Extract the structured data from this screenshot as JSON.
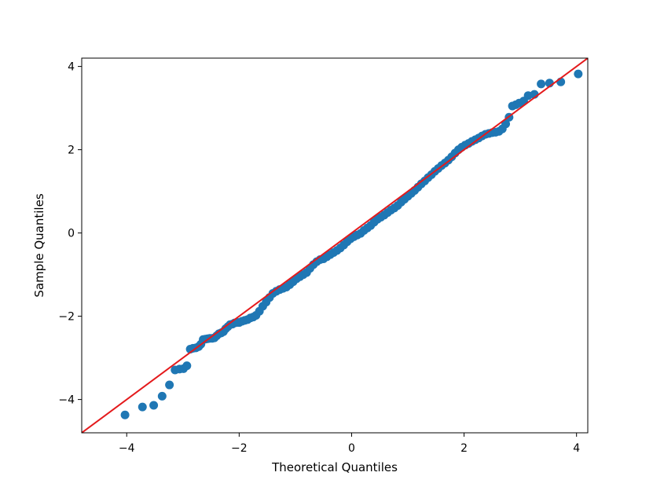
{
  "chart_data": {
    "type": "scatter",
    "title": "",
    "xlabel": "Theoretical Quantiles",
    "ylabel": "Sample Quantiles",
    "xlim": [
      -4.8,
      4.2
    ],
    "ylim": [
      -4.8,
      4.2
    ],
    "xticks": [
      -4,
      -2,
      0,
      2,
      4
    ],
    "yticks": [
      -4,
      -2,
      0,
      2,
      4
    ],
    "xtick_labels": [
      "−4",
      "−2",
      "0",
      "2",
      "4"
    ],
    "ytick_labels": [
      "−4",
      "−2",
      "0",
      "2",
      "4"
    ],
    "grid": false,
    "legend": "none",
    "reference_line": {
      "slope": 1,
      "intercept": 0,
      "color": "#e41a1c"
    },
    "marker_color": "#1f77b4",
    "series": [
      {
        "points": [
          [
            -4.03,
            -4.37
          ],
          [
            -3.72,
            -4.18
          ],
          [
            -3.52,
            -4.14
          ],
          [
            -3.37,
            -3.92
          ],
          [
            -3.24,
            -3.65
          ],
          [
            -3.14,
            -3.29
          ],
          [
            -3.06,
            -3.27
          ],
          [
            -2.99,
            -3.26
          ],
          [
            -2.93,
            -3.19
          ],
          [
            -2.87,
            -2.79
          ],
          [
            -2.82,
            -2.77
          ],
          [
            -2.77,
            -2.76
          ],
          [
            -2.72,
            -2.73
          ],
          [
            -2.68,
            -2.67
          ],
          [
            -2.64,
            -2.56
          ],
          [
            -2.6,
            -2.55
          ],
          [
            -2.56,
            -2.54
          ],
          [
            -2.52,
            -2.53
          ],
          [
            -2.48,
            -2.53
          ],
          [
            -2.44,
            -2.52
          ],
          [
            -2.4,
            -2.47
          ],
          [
            -2.36,
            -2.42
          ],
          [
            -2.32,
            -2.4
          ],
          [
            -2.28,
            -2.37
          ],
          [
            -2.24,
            -2.3
          ],
          [
            -2.2,
            -2.25
          ],
          [
            -2.16,
            -2.2
          ],
          [
            -2.12,
            -2.19
          ],
          [
            -2.08,
            -2.16
          ],
          [
            -2.04,
            -2.15
          ],
          [
            -2.0,
            -2.15
          ],
          [
            -1.95,
            -2.12
          ],
          [
            -1.9,
            -2.1
          ],
          [
            -1.85,
            -2.08
          ],
          [
            -1.8,
            -2.04
          ],
          [
            -1.75,
            -2.02
          ],
          [
            -1.7,
            -1.98
          ],
          [
            -1.64,
            -1.88
          ],
          [
            -1.58,
            -1.76
          ],
          [
            -1.52,
            -1.66
          ],
          [
            -1.46,
            -1.55
          ],
          [
            -1.4,
            -1.45
          ],
          [
            -1.34,
            -1.4
          ],
          [
            -1.28,
            -1.36
          ],
          [
            -1.22,
            -1.33
          ],
          [
            -1.16,
            -1.3
          ],
          [
            -1.1,
            -1.24
          ],
          [
            -1.04,
            -1.17
          ],
          [
            -0.98,
            -1.1
          ],
          [
            -0.92,
            -1.05
          ],
          [
            -0.86,
            -1.0
          ],
          [
            -0.8,
            -0.95
          ],
          [
            -0.74,
            -0.85
          ],
          [
            -0.68,
            -0.76
          ],
          [
            -0.62,
            -0.69
          ],
          [
            -0.56,
            -0.64
          ],
          [
            -0.5,
            -0.62
          ],
          [
            -0.44,
            -0.57
          ],
          [
            -0.38,
            -0.52
          ],
          [
            -0.32,
            -0.47
          ],
          [
            -0.26,
            -0.42
          ],
          [
            -0.2,
            -0.36
          ],
          [
            -0.14,
            -0.29
          ],
          [
            -0.08,
            -0.21
          ],
          [
            -0.02,
            -0.14
          ],
          [
            0.04,
            -0.09
          ],
          [
            0.1,
            -0.05
          ],
          [
            0.16,
            -0.01
          ],
          [
            0.22,
            0.06
          ],
          [
            0.28,
            0.12
          ],
          [
            0.34,
            0.18
          ],
          [
            0.4,
            0.26
          ],
          [
            0.46,
            0.33
          ],
          [
            0.52,
            0.38
          ],
          [
            0.58,
            0.43
          ],
          [
            0.64,
            0.49
          ],
          [
            0.7,
            0.55
          ],
          [
            0.76,
            0.6
          ],
          [
            0.82,
            0.66
          ],
          [
            0.88,
            0.74
          ],
          [
            0.94,
            0.81
          ],
          [
            1.0,
            0.88
          ],
          [
            1.06,
            0.95
          ],
          [
            1.12,
            1.02
          ],
          [
            1.18,
            1.1
          ],
          [
            1.24,
            1.18
          ],
          [
            1.3,
            1.25
          ],
          [
            1.36,
            1.33
          ],
          [
            1.42,
            1.4
          ],
          [
            1.48,
            1.48
          ],
          [
            1.54,
            1.55
          ],
          [
            1.6,
            1.62
          ],
          [
            1.66,
            1.68
          ],
          [
            1.72,
            1.75
          ],
          [
            1.78,
            1.83
          ],
          [
            1.84,
            1.92
          ],
          [
            1.9,
            2.0
          ],
          [
            1.96,
            2.06
          ],
          [
            2.02,
            2.11
          ],
          [
            2.08,
            2.15
          ],
          [
            2.14,
            2.2
          ],
          [
            2.2,
            2.24
          ],
          [
            2.26,
            2.28
          ],
          [
            2.32,
            2.33
          ],
          [
            2.38,
            2.37
          ],
          [
            2.44,
            2.39
          ],
          [
            2.5,
            2.41
          ],
          [
            2.56,
            2.42
          ],
          [
            2.62,
            2.44
          ],
          [
            2.68,
            2.5
          ],
          [
            2.74,
            2.62
          ],
          [
            2.8,
            2.78
          ],
          [
            2.86,
            3.05
          ],
          [
            2.92,
            3.08
          ],
          [
            2.98,
            3.12
          ],
          [
            3.06,
            3.17
          ],
          [
            3.14,
            3.3
          ],
          [
            3.25,
            3.33
          ],
          [
            3.37,
            3.58
          ],
          [
            3.52,
            3.6
          ],
          [
            3.72,
            3.63
          ],
          [
            4.03,
            3.82
          ]
        ]
      }
    ]
  }
}
